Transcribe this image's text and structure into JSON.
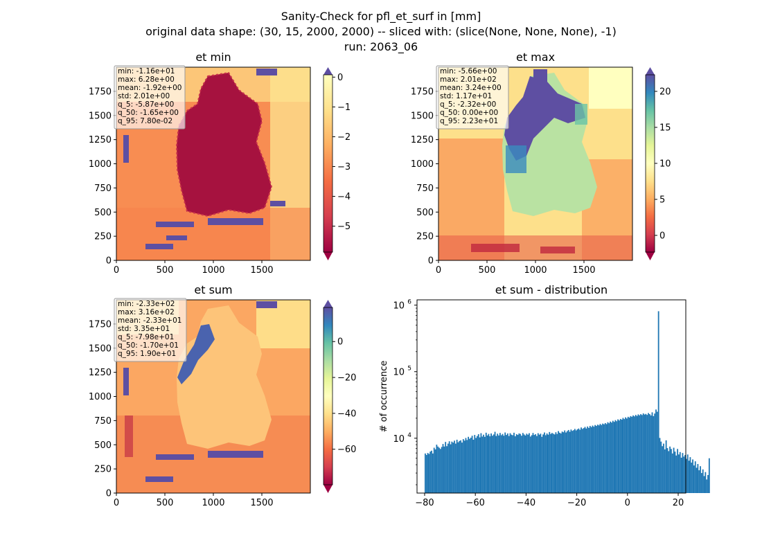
{
  "figure": {
    "title_lines": [
      "Sanity-Check for pfl_et_surf in [mm]",
      "original data shape: (30, 15, 2000, 2000) -- sliced with: (slice(None, None, None), -1)",
      "run: 2063_06"
    ]
  },
  "chart_data": [
    {
      "type": "heatmap",
      "title": "et min",
      "colormap": "Spectral",
      "x_ticks": [
        0,
        500,
        1000,
        1500
      ],
      "y_ticks": [
        0,
        250,
        500,
        750,
        1000,
        1250,
        1500,
        1750
      ],
      "xlim": [
        0,
        2000
      ],
      "ylim": [
        0,
        2000
      ],
      "color_range": [
        -5.87,
        0.078
      ],
      "colorbar_ticks": [
        0,
        -1,
        -2,
        -3,
        -4,
        -5
      ],
      "colorbar_labels": [
        "0",
        "−1",
        "−2",
        "−3",
        "−4",
        "−5"
      ],
      "colorbar_extend": "both",
      "stats": [
        "min: -1.16e+01",
        "max: 6.28e+00",
        "mean: -1.92e+00",
        "std: 2.01e+00",
        "q_5: -5.87e+00",
        "q_50: -1.65e+00",
        "q_95: 7.80e-02"
      ]
    },
    {
      "type": "heatmap",
      "title": "et max",
      "colormap": "Spectral",
      "x_ticks": [
        0,
        500,
        1000,
        1500
      ],
      "y_ticks": [
        0,
        250,
        500,
        750,
        1000,
        1250,
        1500,
        1750
      ],
      "xlim": [
        0,
        2000
      ],
      "ylim": [
        0,
        2000
      ],
      "color_range": [
        -2.32,
        22.3
      ],
      "colorbar_ticks": [
        0,
        5,
        10,
        15,
        20
      ],
      "colorbar_labels": [
        "0",
        "5",
        "10",
        "15",
        "20"
      ],
      "colorbar_extend": "both",
      "stats": [
        "min: -5.66e+00",
        "max: 2.01e+02",
        "mean: 3.24e+00",
        "std: 1.17e+01",
        "q_5: -2.32e+00",
        "q_50: 0.00e+00",
        "q_95: 2.23e+01"
      ]
    },
    {
      "type": "heatmap",
      "title": "et sum",
      "colormap": "Spectral",
      "x_ticks": [
        0,
        500,
        1000,
        1500
      ],
      "y_ticks": [
        0,
        250,
        500,
        750,
        1000,
        1250,
        1500,
        1750
      ],
      "xlim": [
        0,
        2000
      ],
      "ylim": [
        0,
        2000
      ],
      "color_range": [
        -79.8,
        19.0
      ],
      "colorbar_ticks": [
        0,
        -20,
        -40,
        -60
      ],
      "colorbar_labels": [
        "0",
        "−20",
        "−40",
        "−60"
      ],
      "colorbar_extend": "both",
      "stats": [
        "min: -2.33e+02",
        "max: 3.16e+02",
        "mean: -2.33e+01",
        "std: 3.35e+01",
        "q_5: -7.98e+01",
        "q_50: -1.70e+01",
        "q_95: 1.90e+01"
      ]
    },
    {
      "type": "bar",
      "title": "et sum - distribution",
      "xlabel": "",
      "ylabel": "# of occurrence",
      "y_scale": "log",
      "xlim": [
        -83,
        23
      ],
      "ylim": [
        1500,
        1200000
      ],
      "x_ticks": [
        -80,
        -60,
        -40,
        -20,
        0,
        20
      ],
      "x_tick_labels": [
        "−80",
        "−60",
        "−40",
        "−20",
        "0",
        "20"
      ],
      "y_ticks": [
        10000,
        100000,
        1000000
      ],
      "y_tick_labels": [
        "10^4",
        "10^5",
        "10^6"
      ],
      "bar_color": "#1f77b4",
      "bin_width": 0.5,
      "bins_start": -80,
      "values": [
        5900,
        5600,
        6000,
        5800,
        6300,
        6500,
        5900,
        7200,
        6800,
        8000,
        7500,
        7200,
        6900,
        7400,
        8200,
        7500,
        8800,
        7600,
        8300,
        9000,
        8100,
        8900,
        8600,
        9200,
        8300,
        9500,
        8700,
        9100,
        9300,
        8600,
        9700,
        9200,
        10100,
        9400,
        10500,
        9800,
        10200,
        10900,
        9500,
        11200,
        10100,
        10800,
        11500,
        10300,
        11900,
        10600,
        11300,
        10500,
        12100,
        11000,
        11600,
        10700,
        11800,
        10900,
        11400,
        12500,
        10800,
        11700,
        11000,
        12000,
        11100,
        11600,
        10900,
        12200,
        11200,
        11800,
        10800,
        11900,
        11300,
        11100,
        12100,
        10700,
        11500,
        11200,
        11800,
        11600,
        10900,
        12000,
        11400,
        11000,
        11700,
        11300,
        11900,
        10600,
        11100,
        12000,
        11200,
        11500,
        10800,
        11900,
        11300,
        11700,
        10500,
        11400,
        12200,
        11100,
        11800,
        11300,
        12400,
        11600,
        12000,
        11700,
        11400,
        12300,
        11600,
        12800,
        12100,
        11800,
        12600,
        12300,
        13100,
        12200,
        12800,
        13300,
        12500,
        13500,
        12900,
        13200,
        13800,
        13100,
        13600,
        14000,
        13400,
        14500,
        13800,
        14200,
        14800,
        14000,
        15000,
        14300,
        15300,
        14700,
        15500,
        14900,
        15800,
        15300,
        16000,
        15600,
        16400,
        15800,
        16600,
        16200,
        16900,
        16300,
        17400,
        16800,
        17800,
        17200,
        18300,
        17600,
        18700,
        18000,
        19200,
        18500,
        19500,
        19000,
        20200,
        19400,
        20600,
        19800,
        21000,
        20400,
        21500,
        21000,
        22000,
        21300,
        22400,
        21600,
        22800,
        22100,
        23000,
        22300,
        23600,
        22700,
        23200,
        22400,
        23900,
        23000,
        22000,
        24500,
        21500,
        23500,
        27000,
        25000,
        810000,
        10100,
        8900,
        7600,
        8300,
        6800,
        9300,
        7100,
        6400,
        7500,
        6900,
        5900,
        7200,
        6300,
        5500,
        6900,
        5700,
        6200,
        5100,
        6000,
        5300,
        5600,
        4900,
        5700,
        4600,
        5200,
        4300,
        4800,
        3900,
        4500,
        3600,
        4100,
        3300,
        3800,
        3000,
        3400,
        2700,
        3100,
        2400,
        2800,
        5000
      ]
    }
  ]
}
